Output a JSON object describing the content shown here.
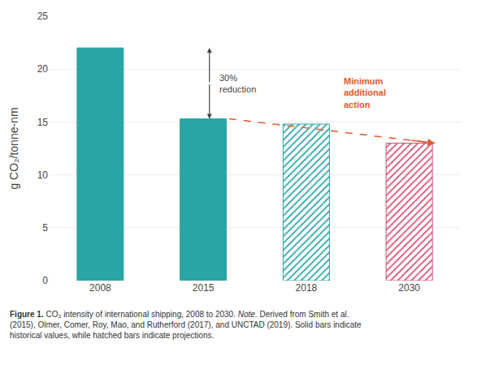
{
  "chart_data": {
    "type": "bar",
    "categories": [
      "2008",
      "2015",
      "2018",
      "2030"
    ],
    "values": [
      22,
      15.3,
      14.8,
      13.0
    ],
    "colors": [
      "#2aa4a4",
      "#2aa4a4",
      "#2aa4a4",
      "#d94f6e"
    ],
    "ylabel": "g CO₂/tonne-nm",
    "ylim": [
      0,
      25
    ],
    "yticks": [
      0,
      5,
      10,
      15,
      20,
      25
    ],
    "grid": true,
    "annotations": [
      {
        "text": "30%\nreduction",
        "color": "#444444"
      },
      {
        "text": "Minimum\nadditional\naction",
        "color": "#e05a30"
      }
    ],
    "caption_lines": [
      {
        "bold": "Figure 1.",
        "normal": " CO₂ intensity of international shipping, 2008 to 2030. ",
        "italic": "Note",
        "rest": ". Derived from Smith et al."
      },
      {
        "normal": "(2015), Olmer, Comer, Roy, Mao, and Rutherford (2017), and UNCTAD (2019). Solid bars indicate"
      },
      {
        "normal": "historical values, while hatched bars indicate projections."
      }
    ]
  }
}
